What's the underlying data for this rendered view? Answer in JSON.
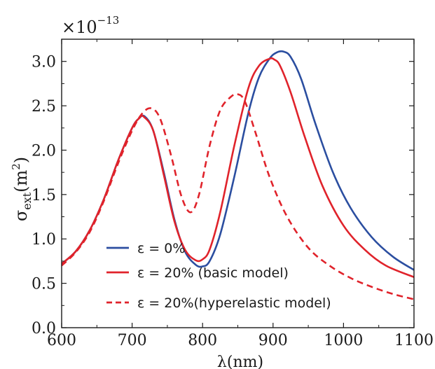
{
  "chart_data": {
    "type": "line",
    "xlabel": "λ(nm)",
    "ylabel": {
      "symbol": "σ",
      "subscript": "ext",
      "unit_open": "(m",
      "unit_sup": "2",
      "unit_close": ")"
    },
    "multiplier": {
      "base": "×10",
      "exponent": "−13"
    },
    "xlim": [
      600,
      1100
    ],
    "ylim": [
      0,
      3.25
    ],
    "xticks": [
      600,
      700,
      800,
      900,
      1000,
      1100
    ],
    "xtick_labels": [
      "600",
      "700",
      "800",
      "900",
      "1000",
      "1100"
    ],
    "yticks": [
      0,
      0.5,
      1.0,
      1.5,
      2.0,
      2.5,
      3.0
    ],
    "ytick_labels": [
      "0.0",
      "0.5",
      "1.0",
      "1.5",
      "2.0",
      "2.5",
      "3.0"
    ],
    "legend_position": "lower-left",
    "series": [
      {
        "name": "ε = 0%",
        "color": "#2b4ea0",
        "style": "solid",
        "x": [
          600,
          620,
          640,
          660,
          680,
          700,
          710,
          718,
          730,
          745,
          760,
          775,
          790,
          800,
          810,
          825,
          845,
          865,
          880,
          895,
          905,
          915,
          925,
          940,
          960,
          985,
          1010,
          1040,
          1070,
          1100
        ],
        "y": [
          0.72,
          0.86,
          1.1,
          1.45,
          1.88,
          2.25,
          2.36,
          2.38,
          2.22,
          1.75,
          1.22,
          0.86,
          0.71,
          0.69,
          0.75,
          1.05,
          1.7,
          2.42,
          2.82,
          3.03,
          3.1,
          3.11,
          3.05,
          2.8,
          2.3,
          1.75,
          1.35,
          1.02,
          0.8,
          0.65
        ]
      },
      {
        "name": "ε = 20% (basic model)",
        "color": "#e0232b",
        "style": "solid",
        "x": [
          600,
          620,
          640,
          660,
          680,
          700,
          710,
          716,
          730,
          745,
          760,
          775,
          790,
          800,
          810,
          825,
          845,
          865,
          880,
          895,
          902,
          910,
          925,
          945,
          970,
          1000,
          1030,
          1060,
          1100
        ],
        "y": [
          0.72,
          0.86,
          1.1,
          1.45,
          1.88,
          2.25,
          2.36,
          2.38,
          2.22,
          1.72,
          1.2,
          0.88,
          0.76,
          0.77,
          0.88,
          1.3,
          2.05,
          2.7,
          2.95,
          3.03,
          3.02,
          2.95,
          2.65,
          2.15,
          1.6,
          1.15,
          0.88,
          0.7,
          0.57
        ]
      },
      {
        "name": "ε = 20%(hyperelastic model)",
        "color": "#e0232b",
        "style": "dashed",
        "x": [
          600,
          620,
          640,
          660,
          680,
          700,
          715,
          728,
          740,
          755,
          770,
          783,
          795,
          810,
          825,
          840,
          850,
          860,
          875,
          895,
          920,
          950,
          980,
          1010,
          1040,
          1070,
          1100
        ],
        "y": [
          0.7,
          0.85,
          1.08,
          1.43,
          1.85,
          2.22,
          2.42,
          2.47,
          2.35,
          1.95,
          1.48,
          1.3,
          1.5,
          2.05,
          2.45,
          2.6,
          2.63,
          2.55,
          2.2,
          1.7,
          1.25,
          0.9,
          0.7,
          0.56,
          0.46,
          0.38,
          0.32
        ]
      }
    ]
  }
}
